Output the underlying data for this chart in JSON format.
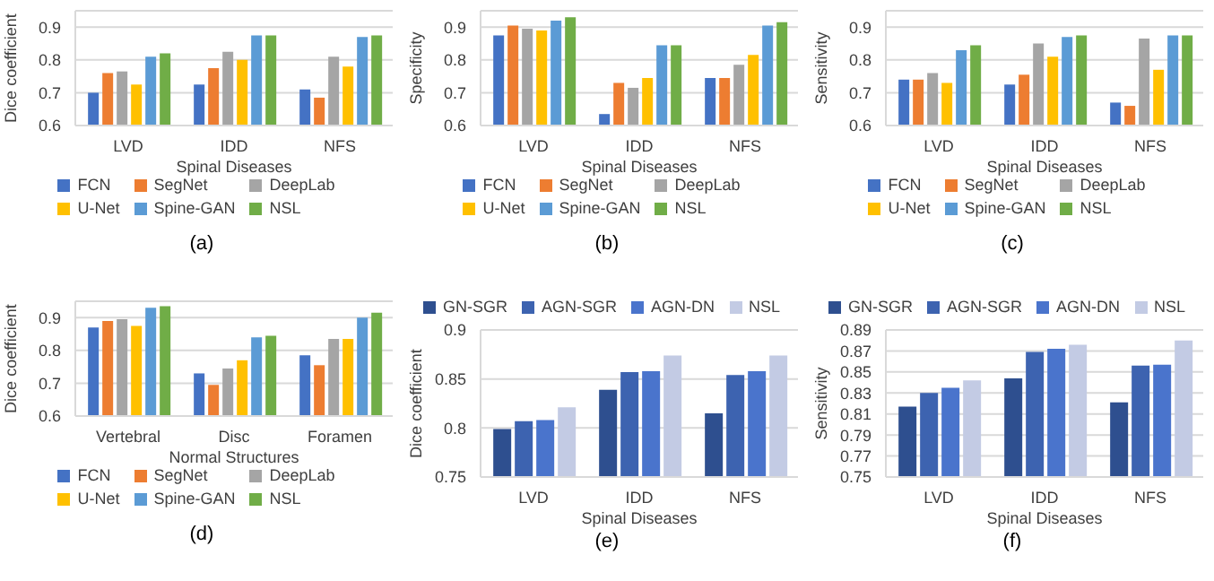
{
  "chart_data": [
    {
      "type": "bar",
      "categories": [
        "LVD",
        "IDD",
        "NFS"
      ],
      "xlabel": "Spinal Diseases",
      "ylabel": "Dice coefficient",
      "ylim": [
        0.6,
        0.95
      ],
      "yticks": [
        0.6,
        0.7,
        0.8,
        0.9
      ],
      "grid": "y",
      "legend": "bottom",
      "annotations": [
        "(a)"
      ],
      "series": [
        {
          "name": "FCN",
          "color": "#4472c4",
          "values": [
            0.7,
            0.725,
            0.71
          ]
        },
        {
          "name": "SegNet",
          "color": "#ed7d31",
          "values": [
            0.76,
            0.775,
            0.685
          ]
        },
        {
          "name": "DeepLab",
          "color": "#a5a5a5",
          "values": [
            0.765,
            0.825,
            0.81
          ]
        },
        {
          "name": "U-Net",
          "color": "#ffc000",
          "values": [
            0.725,
            0.8,
            0.78
          ]
        },
        {
          "name": "Spine-GAN",
          "color": "#5b9bd5",
          "values": [
            0.81,
            0.875,
            0.87
          ]
        },
        {
          "name": "NSL",
          "color": "#70ad47",
          "values": [
            0.82,
            0.875,
            0.875
          ]
        }
      ]
    },
    {
      "type": "bar",
      "categories": [
        "LVD",
        "IDD",
        "NFS"
      ],
      "xlabel": "Spinal Diseases",
      "ylabel": "Specificity",
      "ylim": [
        0.6,
        0.95
      ],
      "yticks": [
        0.6,
        0.7,
        0.8,
        0.9
      ],
      "grid": "y",
      "legend": "bottom",
      "annotations": [
        "(b)"
      ],
      "series": [
        {
          "name": "FCN",
          "color": "#4472c4",
          "values": [
            0.875,
            0.635,
            0.745
          ]
        },
        {
          "name": "SegNet",
          "color": "#ed7d31",
          "values": [
            0.905,
            0.73,
            0.745
          ]
        },
        {
          "name": "DeepLab",
          "color": "#a5a5a5",
          "values": [
            0.895,
            0.715,
            0.785
          ]
        },
        {
          "name": "U-Net",
          "color": "#ffc000",
          "values": [
            0.89,
            0.745,
            0.815
          ]
        },
        {
          "name": "Spine-GAN",
          "color": "#5b9bd5",
          "values": [
            0.92,
            0.845,
            0.905
          ]
        },
        {
          "name": "NSL",
          "color": "#70ad47",
          "values": [
            0.93,
            0.845,
            0.915
          ]
        }
      ]
    },
    {
      "type": "bar",
      "categories": [
        "LVD",
        "IDD",
        "NFS"
      ],
      "xlabel": "Spinal Diseases",
      "ylabel": "Sensitivity",
      "ylim": [
        0.6,
        0.95
      ],
      "yticks": [
        0.6,
        0.7,
        0.8,
        0.9
      ],
      "grid": "y",
      "legend": "bottom",
      "annotations": [
        "(c)"
      ],
      "series": [
        {
          "name": "FCN",
          "color": "#4472c4",
          "values": [
            0.74,
            0.725,
            0.67
          ]
        },
        {
          "name": "SegNet",
          "color": "#ed7d31",
          "values": [
            0.74,
            0.755,
            0.66
          ]
        },
        {
          "name": "DeepLab",
          "color": "#a5a5a5",
          "values": [
            0.76,
            0.85,
            0.865
          ]
        },
        {
          "name": "U-Net",
          "color": "#ffc000",
          "values": [
            0.73,
            0.81,
            0.77
          ]
        },
        {
          "name": "Spine-GAN",
          "color": "#5b9bd5",
          "values": [
            0.83,
            0.87,
            0.875
          ]
        },
        {
          "name": "NSL",
          "color": "#70ad47",
          "values": [
            0.845,
            0.875,
            0.875
          ]
        }
      ]
    },
    {
      "type": "bar",
      "categories": [
        "Vertebral",
        "Disc",
        "Foramen"
      ],
      "xlabel": "Normal Structures",
      "ylabel": "Dice coefficient",
      "ylim": [
        0.6,
        0.95
      ],
      "yticks": [
        0.6,
        0.7,
        0.8,
        0.9
      ],
      "grid": "y",
      "legend": "bottom",
      "annotations": [
        "(d)"
      ],
      "series": [
        {
          "name": "FCN",
          "color": "#4472c4",
          "values": [
            0.87,
            0.73,
            0.785
          ]
        },
        {
          "name": "SegNet",
          "color": "#ed7d31",
          "values": [
            0.89,
            0.695,
            0.755
          ]
        },
        {
          "name": "DeepLab",
          "color": "#a5a5a5",
          "values": [
            0.895,
            0.745,
            0.835
          ]
        },
        {
          "name": "U-Net",
          "color": "#ffc000",
          "values": [
            0.875,
            0.77,
            0.835
          ]
        },
        {
          "name": "Spine-GAN",
          "color": "#5b9bd5",
          "values": [
            0.93,
            0.84,
            0.9
          ]
        },
        {
          "name": "NSL",
          "color": "#70ad47",
          "values": [
            0.935,
            0.845,
            0.915
          ]
        }
      ]
    },
    {
      "type": "bar",
      "categories": [
        "LVD",
        "IDD",
        "NFS"
      ],
      "xlabel": "Spinal Diseases",
      "ylabel": "Dice coefficient",
      "ylim": [
        0.75,
        0.9
      ],
      "yticks": [
        0.75,
        0.8,
        0.85,
        0.9
      ],
      "grid": "y",
      "legend": "top",
      "annotations": [
        "(e)"
      ],
      "series": [
        {
          "name": "GN-SGR",
          "color": "#2e4f8f",
          "values": [
            0.799,
            0.839,
            0.815
          ]
        },
        {
          "name": "AGN-SGR",
          "color": "#3d63b0",
          "values": [
            0.807,
            0.857,
            0.854
          ]
        },
        {
          "name": "AGN-DN",
          "color": "#4a74cc",
          "values": [
            0.808,
            0.858,
            0.858
          ]
        },
        {
          "name": "NSL",
          "color": "#c3cbe4",
          "values": [
            0.821,
            0.874,
            0.874
          ]
        }
      ]
    },
    {
      "type": "bar",
      "categories": [
        "LVD",
        "IDD",
        "NFS"
      ],
      "xlabel": "Spinal Diseases",
      "ylabel": "Sensitivity",
      "ylim": [
        0.75,
        0.89
      ],
      "yticks": [
        0.75,
        0.77,
        0.79,
        0.81,
        0.83,
        0.85,
        0.87,
        0.89
      ],
      "grid": "y",
      "legend": "top",
      "annotations": [
        "(f)"
      ],
      "series": [
        {
          "name": "GN-SGR",
          "color": "#2e4f8f",
          "values": [
            0.817,
            0.844,
            0.821
          ]
        },
        {
          "name": "AGN-SGR",
          "color": "#3d63b0",
          "values": [
            0.83,
            0.869,
            0.856
          ]
        },
        {
          "name": "AGN-DN",
          "color": "#4a74cc",
          "values": [
            0.835,
            0.872,
            0.857
          ]
        },
        {
          "name": "NSL",
          "color": "#c3cbe4",
          "values": [
            0.842,
            0.876,
            0.88
          ]
        }
      ]
    }
  ]
}
